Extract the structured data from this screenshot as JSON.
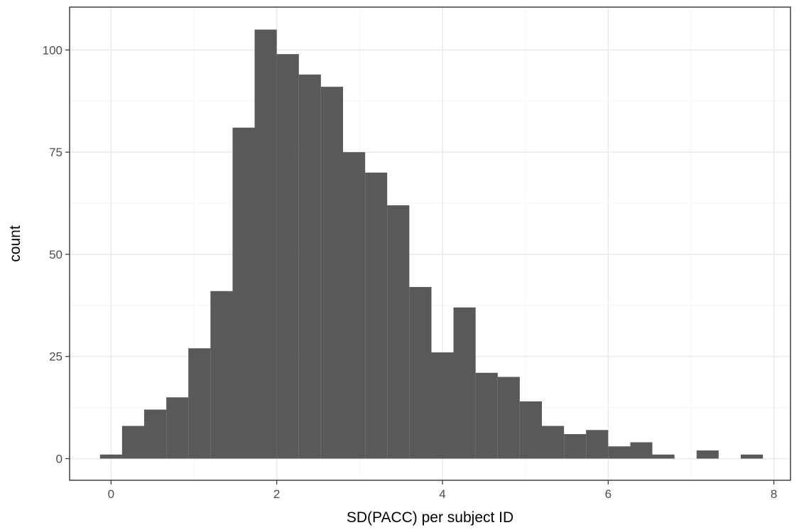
{
  "chart_data": {
    "type": "bar",
    "subtype": "histogram",
    "title": "",
    "xlabel": "SD(PACC) per subject ID",
    "ylabel": "count",
    "xlim": [
      -0.5,
      8.2
    ],
    "ylim": [
      -5.3,
      110.5
    ],
    "x_ticks": [
      0,
      2,
      4,
      6,
      8
    ],
    "y_ticks": [
      0,
      25,
      50,
      75,
      100
    ],
    "x_tick_labels": [
      "0",
      "2",
      "4",
      "6",
      "8"
    ],
    "y_tick_labels": [
      "0",
      "25",
      "50",
      "75",
      "100"
    ],
    "grid": true,
    "legend": "none",
    "bar_color": "#595959",
    "bin_edges": [
      -0.133,
      0.133,
      0.4,
      0.667,
      0.933,
      1.2,
      1.467,
      1.733,
      2.0,
      2.267,
      2.533,
      2.8,
      3.067,
      3.333,
      3.6,
      3.867,
      4.133,
      4.4,
      4.667,
      4.933,
      5.2,
      5.467,
      5.733,
      6.0,
      6.267,
      6.533,
      6.8,
      7.067,
      7.333,
      7.6,
      7.867
    ],
    "values": [
      1,
      8,
      12,
      15,
      27,
      41,
      81,
      105,
      99,
      94,
      91,
      75,
      70,
      62,
      42,
      26,
      37,
      21,
      20,
      14,
      8,
      6,
      7,
      3,
      4,
      1,
      0,
      2,
      0,
      1
    ]
  }
}
